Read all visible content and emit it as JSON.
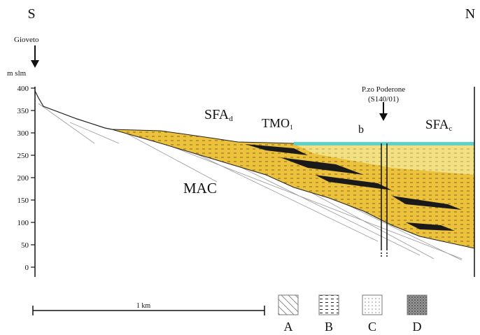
{
  "compass": {
    "south": "S",
    "north": "N"
  },
  "locations": [
    {
      "label": "Gioveto"
    },
    {
      "label": "P.zo Poderone",
      "code": "(S140/01)"
    }
  ],
  "axis": {
    "unit": "m slm",
    "ticks": [
      "400",
      "350",
      "300",
      "250",
      "200",
      "150",
      "100",
      "50",
      "0"
    ]
  },
  "units": [
    {
      "label": "SFA",
      "sub": "d"
    },
    {
      "label": "TMO",
      "sub": "1"
    },
    {
      "label": "b"
    },
    {
      "label": "SFA",
      "sub": "c"
    },
    {
      "label": "MAC"
    }
  ],
  "scale": "1 km",
  "legend": [
    "A",
    "B",
    "C",
    "D"
  ]
}
